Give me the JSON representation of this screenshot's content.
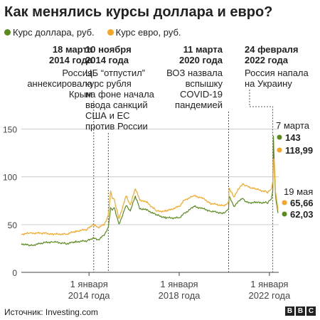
{
  "title": "Как менялись курсы доллара и евро?",
  "legend": [
    {
      "label": "Курс доллара, руб.",
      "color": "#5a8a1e"
    },
    {
      "label": "Курс евро, руб.",
      "color": "#f5a623"
    }
  ],
  "source": "Источник: Investing.com",
  "logo": [
    "B",
    "B",
    "C"
  ],
  "chart_data": {
    "type": "line",
    "ylim": [
      0,
      160
    ],
    "yticks": [
      0,
      50,
      100,
      150
    ],
    "x_range": [
      "2011-01-01",
      "2022-06-01"
    ],
    "x_ticks": [
      {
        "date": "2014-01-01",
        "label1": "1 января",
        "label2": "2014 года"
      },
      {
        "date": "2018-01-01",
        "label1": "1 января",
        "label2": "2018 года"
      },
      {
        "date": "2022-01-01",
        "label1": "1 января",
        "label2": "2022 года"
      }
    ],
    "series": [
      {
        "name": "Курс доллара, руб.",
        "color": "#5a8a1e",
        "points": [
          [
            "2011-01-01",
            30
          ],
          [
            "2011-06-01",
            28
          ],
          [
            "2012-01-01",
            31
          ],
          [
            "2012-06-01",
            32
          ],
          [
            "2013-01-01",
            30
          ],
          [
            "2013-06-01",
            32
          ],
          [
            "2013-12-01",
            33
          ],
          [
            "2014-03-01",
            36
          ],
          [
            "2014-06-01",
            34
          ],
          [
            "2014-09-01",
            39
          ],
          [
            "2014-11-10",
            47
          ],
          [
            "2014-12-16",
            67
          ],
          [
            "2015-01-15",
            66
          ],
          [
            "2015-02-15",
            68
          ],
          [
            "2015-05-01",
            50
          ],
          [
            "2015-08-25",
            70
          ],
          [
            "2015-11-01",
            64
          ],
          [
            "2016-01-21",
            80
          ],
          [
            "2016-04-01",
            67
          ],
          [
            "2016-08-01",
            65
          ],
          [
            "2017-01-01",
            60
          ],
          [
            "2017-06-01",
            57
          ],
          [
            "2018-01-01",
            57
          ],
          [
            "2018-04-01",
            62
          ],
          [
            "2018-09-01",
            69
          ],
          [
            "2019-01-01",
            67
          ],
          [
            "2019-06-01",
            64
          ],
          [
            "2019-12-01",
            62
          ],
          [
            "2020-02-15",
            64
          ],
          [
            "2020-03-11",
            67
          ],
          [
            "2020-03-19",
            80
          ],
          [
            "2020-06-01",
            69
          ],
          [
            "2020-10-20",
            78
          ],
          [
            "2021-01-01",
            73
          ],
          [
            "2021-06-01",
            73
          ],
          [
            "2021-12-01",
            73
          ],
          [
            "2022-02-01",
            77
          ],
          [
            "2022-02-24",
            85
          ],
          [
            "2022-03-07",
            143
          ],
          [
            "2022-03-20",
            110
          ],
          [
            "2022-04-10",
            80
          ],
          [
            "2022-05-19",
            62.03
          ]
        ]
      },
      {
        "name": "Курс евро, руб.",
        "color": "#f5a623",
        "points": [
          [
            "2011-01-01",
            40
          ],
          [
            "2011-06-01",
            41
          ],
          [
            "2012-01-01",
            41
          ],
          [
            "2012-06-01",
            40
          ],
          [
            "2013-01-01",
            40
          ],
          [
            "2013-06-01",
            43
          ],
          [
            "2013-12-01",
            45
          ],
          [
            "2014-03-01",
            50
          ],
          [
            "2014-06-01",
            47
          ],
          [
            "2014-09-01",
            50
          ],
          [
            "2014-11-10",
            59
          ],
          [
            "2014-12-16",
            85
          ],
          [
            "2015-01-15",
            78
          ],
          [
            "2015-02-15",
            76
          ],
          [
            "2015-05-01",
            56
          ],
          [
            "2015-08-25",
            80
          ],
          [
            "2015-11-01",
            70
          ],
          [
            "2016-01-21",
            88
          ],
          [
            "2016-04-01",
            76
          ],
          [
            "2016-08-01",
            73
          ],
          [
            "2017-01-01",
            64
          ],
          [
            "2017-06-01",
            64
          ],
          [
            "2018-01-01",
            69
          ],
          [
            "2018-04-01",
            76
          ],
          [
            "2018-09-01",
            80
          ],
          [
            "2019-01-01",
            78
          ],
          [
            "2019-06-01",
            72
          ],
          [
            "2019-12-01",
            70
          ],
          [
            "2020-02-15",
            71
          ],
          [
            "2020-03-11",
            75
          ],
          [
            "2020-03-19",
            88
          ],
          [
            "2020-06-01",
            79
          ],
          [
            "2020-10-20",
            93
          ],
          [
            "2021-01-01",
            90
          ],
          [
            "2021-06-01",
            87
          ],
          [
            "2021-12-01",
            84
          ],
          [
            "2022-02-01",
            87
          ],
          [
            "2022-02-24",
            95
          ],
          [
            "2022-03-07",
            118.99
          ],
          [
            "2022-03-20",
            115
          ],
          [
            "2022-04-10",
            85
          ],
          [
            "2022-05-19",
            65.66
          ]
        ]
      }
    ],
    "annotations": [
      {
        "date": "2014-03-18",
        "date_label": [
          "18 марта",
          "2014 года"
        ],
        "text": [
          "Россия",
          "аннексировала",
          "Крым"
        ],
        "align": "right"
      },
      {
        "date": "2014-11-10",
        "date_label": [
          "10 ноября",
          "2014 года"
        ],
        "text": [
          "ЦБ “отпустил”",
          "курс рубля",
          "на фоне начала",
          "ввода санкций",
          "США и ЕС",
          "против России"
        ],
        "align": "left"
      },
      {
        "date": "2020-03-11",
        "date_label": [
          "11 марта",
          "2020 года"
        ],
        "text": [
          "ВОЗ назвала",
          "вспышку",
          "COVID-19",
          "пандемией"
        ],
        "align": "right"
      },
      {
        "date": "2022-02-24",
        "date_label": [
          "24 февраля",
          "2022 года"
        ],
        "text": [
          "Россия напала",
          "на Украину"
        ],
        "align": "left"
      }
    ],
    "callouts": [
      {
        "date_label": "7 марта",
        "usd": "143",
        "eur": "118,99"
      },
      {
        "date_label": "19 мая",
        "usd": "62,03",
        "eur": "65,66"
      }
    ]
  }
}
